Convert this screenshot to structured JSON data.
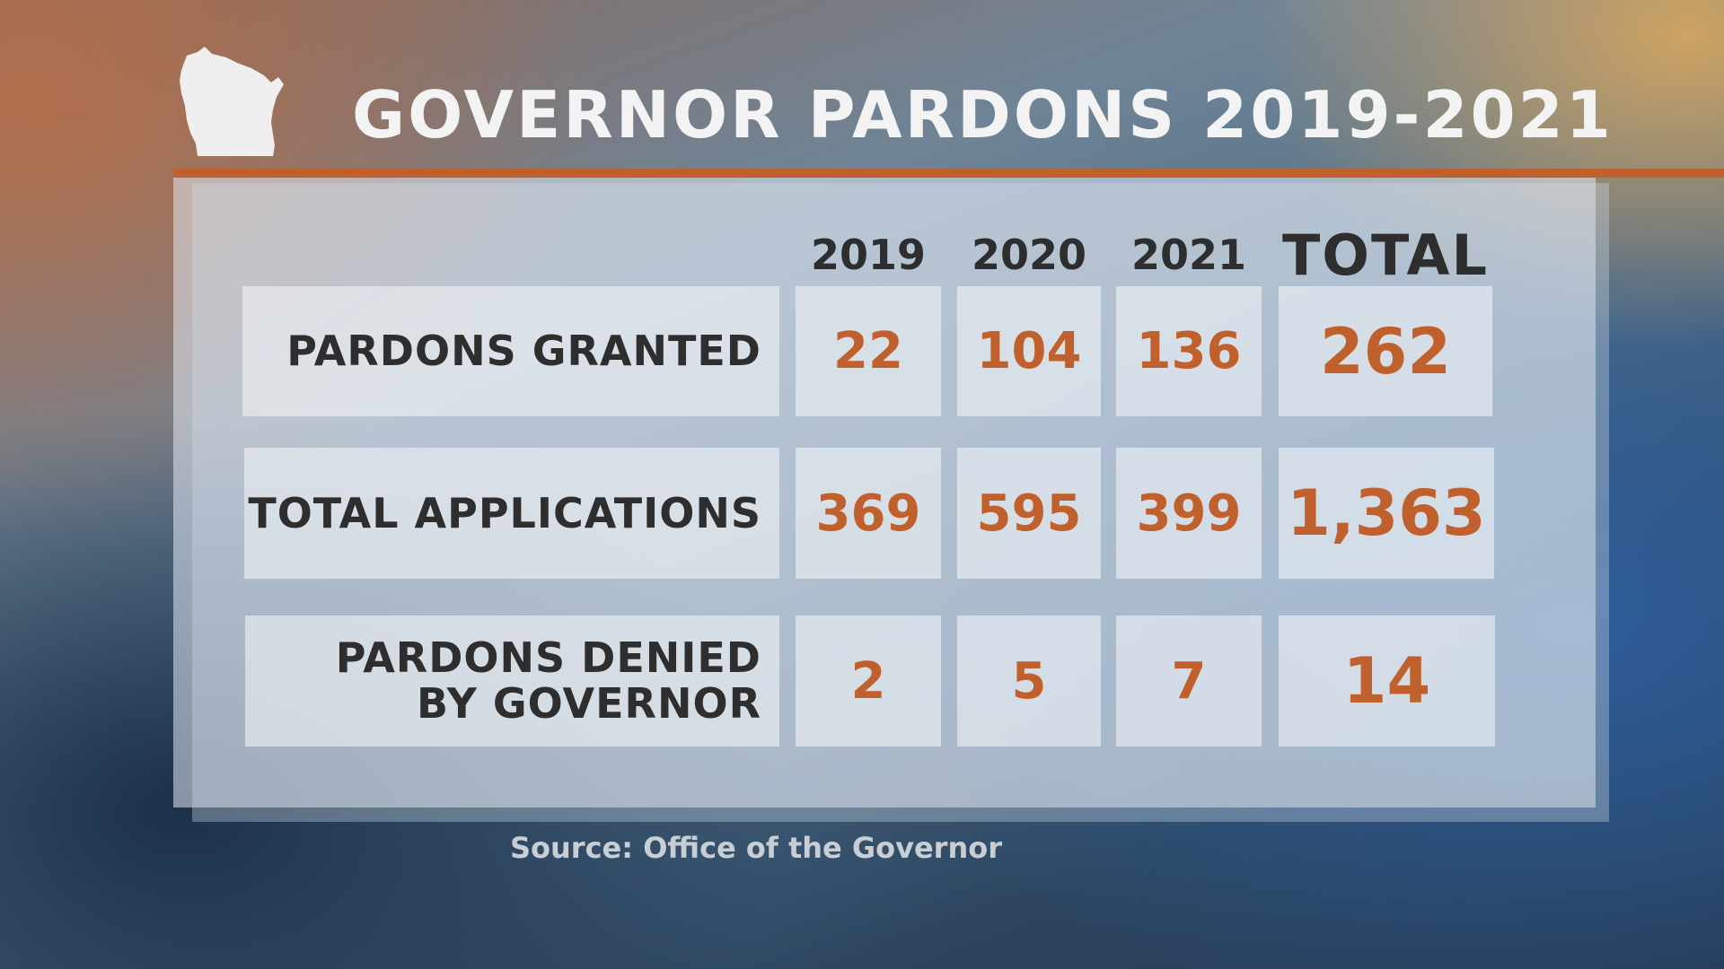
{
  "title": "GOVERNOR PARDONS 2019-2021",
  "source": "Source: Office of the Governor",
  "colors": {
    "accent": "#c0602c",
    "label_text": "#2e2e2e",
    "title_text": "#f3f3f3"
  },
  "chart_data": {
    "type": "table",
    "title": "GOVERNOR PARDONS 2019-2021",
    "columns": [
      "2019",
      "2020",
      "2021",
      "TOTAL"
    ],
    "rows": [
      {
        "label": "PARDONS GRANTED",
        "values": [
          "22",
          "104",
          "136",
          "262"
        ]
      },
      {
        "label": "TOTAL APPLICATIONS",
        "values": [
          "369",
          "595",
          "399",
          "1,363"
        ]
      },
      {
        "label_lines": [
          "PARDONS DENIED",
          "BY GOVERNOR"
        ],
        "values": [
          "2",
          "5",
          "7",
          "14"
        ]
      }
    ]
  }
}
